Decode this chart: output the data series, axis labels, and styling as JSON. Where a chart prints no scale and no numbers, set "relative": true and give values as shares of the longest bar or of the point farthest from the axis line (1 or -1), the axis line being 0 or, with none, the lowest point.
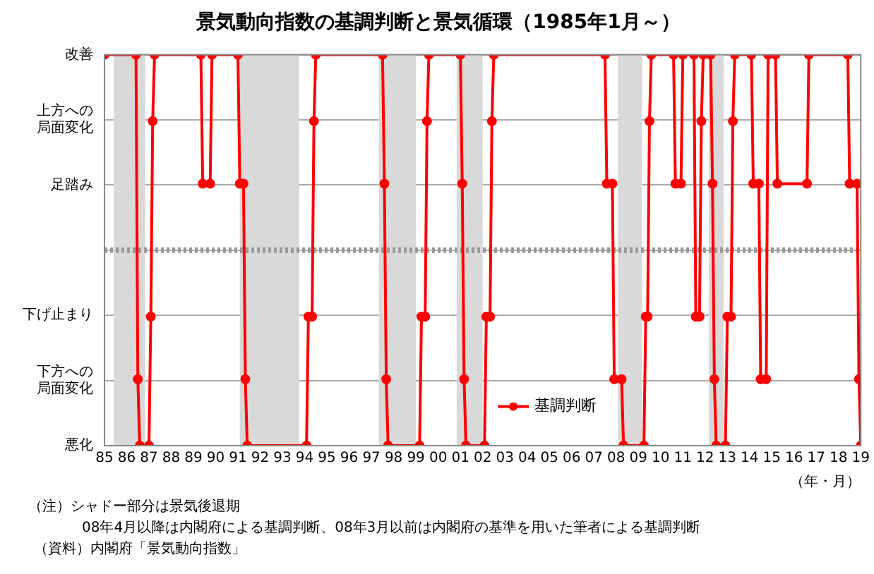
{
  "chart_data": {
    "type": "line",
    "title": "景気動向指数の基調判断と景気循環（1985年1月～）",
    "xlabel": "（年・月）",
    "x": [
      "1985-01",
      "1986-06",
      "1986-07",
      "1986-08",
      "1987-01",
      "1987-02",
      "1987-03",
      "1987-04",
      "1989-05",
      "1989-06",
      "1989-10",
      "1989-11",
      "1991-01",
      "1991-02",
      "1991-04",
      "1991-05",
      "1991-06",
      "1994-02",
      "1994-03",
      "1994-05",
      "1994-06",
      "1994-07",
      "1997-07",
      "1997-08",
      "1997-09",
      "1997-10",
      "1999-03",
      "1999-04",
      "1999-06",
      "1999-07",
      "1999-08",
      "2001-01",
      "2001-02",
      "2001-03",
      "2001-04",
      "2002-02",
      "2002-03",
      "2002-05",
      "2002-06",
      "2002-07",
      "2007-07",
      "2007-08",
      "2007-11",
      "2007-12",
      "2008-04",
      "2008-05",
      "2009-04",
      "2009-05",
      "2009-06",
      "2009-07",
      "2009-08",
      "2010-08",
      "2010-09",
      "2010-12",
      "2011-01",
      "2011-07",
      "2011-08",
      "2011-10",
      "2011-11",
      "2011-12",
      "2012-04",
      "2012-05",
      "2012-06",
      "2012-07",
      "2012-12",
      "2013-01",
      "2013-03",
      "2013-04",
      "2013-05",
      "2014-02",
      "2014-03",
      "2014-06",
      "2014-07",
      "2014-10",
      "2014-11",
      "2015-03",
      "2015-04",
      "2016-08",
      "2016-09",
      "2018-06",
      "2018-07",
      "2018-11",
      "2018-12",
      "2019-01"
    ],
    "series": [
      {
        "name": "基調判断",
        "color": "#ff0000",
        "values": [
          1,
          1,
          0.17,
          0,
          0,
          0.33,
          0.83,
          1,
          1,
          0.67,
          0.67,
          1,
          1,
          0.67,
          0.67,
          0.17,
          0,
          0,
          0.33,
          0.33,
          0.83,
          1,
          1,
          0.67,
          0.17,
          0,
          0,
          0.33,
          0.33,
          0.83,
          1,
          1,
          0.67,
          0.17,
          0,
          0,
          0.33,
          0.33,
          0.83,
          1,
          1,
          0.67,
          0.67,
          0.17,
          0.17,
          0,
          0,
          0.33,
          0.33,
          0.83,
          1,
          1,
          0.67,
          0.67,
          1,
          1,
          0.33,
          0.33,
          0.83,
          1,
          1,
          0.67,
          0.17,
          0,
          0,
          0.33,
          0.33,
          0.83,
          1,
          1,
          0.67,
          0.67,
          0.17,
          0.17,
          1,
          1,
          0.67,
          0.67,
          1,
          1,
          0.67,
          0.67,
          0.17,
          0
        ]
      }
    ],
    "relative": true,
    "xlim": [
      "1985-01",
      "2019-01"
    ],
    "xticks": [
      {
        "value": "1985-01",
        "label": "85"
      },
      {
        "value": "1986-01",
        "label": "86"
      },
      {
        "value": "1987-01",
        "label": "87"
      },
      {
        "value": "1988-01",
        "label": "88"
      },
      {
        "value": "1989-01",
        "label": "89"
      },
      {
        "value": "1990-01",
        "label": "90"
      },
      {
        "value": "1991-01",
        "label": "91"
      },
      {
        "value": "1992-01",
        "label": "92"
      },
      {
        "value": "1993-01",
        "label": "93"
      },
      {
        "value": "1994-01",
        "label": "94"
      },
      {
        "value": "1995-01",
        "label": "95"
      },
      {
        "value": "1996-01",
        "label": "96"
      },
      {
        "value": "1997-01",
        "label": "97"
      },
      {
        "value": "1998-01",
        "label": "98"
      },
      {
        "value": "1999-01",
        "label": "99"
      },
      {
        "value": "2000-01",
        "label": "00"
      },
      {
        "value": "2001-01",
        "label": "01"
      },
      {
        "value": "2002-01",
        "label": "02"
      },
      {
        "value": "2003-01",
        "label": "03"
      },
      {
        "value": "2004-01",
        "label": "04"
      },
      {
        "value": "2005-01",
        "label": "05"
      },
      {
        "value": "2006-01",
        "label": "06"
      },
      {
        "value": "2007-01",
        "label": "07"
      },
      {
        "value": "2008-01",
        "label": "08"
      },
      {
        "value": "2009-01",
        "label": "09"
      },
      {
        "value": "2010-01",
        "label": "10"
      },
      {
        "value": "2011-01",
        "label": "11"
      },
      {
        "value": "2012-01",
        "label": "12"
      },
      {
        "value": "2013-01",
        "label": "13"
      },
      {
        "value": "2014-01",
        "label": "14"
      },
      {
        "value": "2015-01",
        "label": "15"
      },
      {
        "value": "2016-01",
        "label": "16"
      },
      {
        "value": "2017-01",
        "label": "17"
      },
      {
        "value": "2018-01",
        "label": "18"
      },
      {
        "value": "2019-01",
        "label": "19"
      }
    ],
    "y_categories": [
      "改善",
      "上方への局面変化",
      "足踏み",
      null,
      "下げ止まり",
      "下方への局面変化",
      "悪化"
    ],
    "ref_lines": [
      {
        "axis": "y",
        "value": 0.5,
        "label": null,
        "color": "#999999",
        "line_style": "dotted"
      }
    ],
    "bands": [
      {
        "axis": "x",
        "from": "1985-06",
        "to": "1986-11",
        "label": null,
        "color": "#d9d9d9"
      },
      {
        "axis": "x",
        "from": "1991-02",
        "to": "1993-10",
        "label": null,
        "color": "#d9d9d9"
      },
      {
        "axis": "x",
        "from": "1997-05",
        "to": "1999-01",
        "label": null,
        "color": "#d9d9d9"
      },
      {
        "axis": "x",
        "from": "2000-11",
        "to": "2002-01",
        "label": null,
        "color": "#d9d9d9"
      },
      {
        "axis": "x",
        "from": "2008-02",
        "to": "2009-03",
        "label": null,
        "color": "#d9d9d9"
      },
      {
        "axis": "x",
        "from": "2012-03",
        "to": "2012-11",
        "label": null,
        "color": "#d9d9d9"
      }
    ],
    "grid": "y",
    "legend": "bottom",
    "marker": "circle",
    "line_style": "solid",
    "annotations": [
      "（注）シャドー部分は景気後退期",
      "08年4月以降は内閣府による基調判断、08年3月以前は内閣府の基準を用いた筆者による基調判断",
      "（資料）内閣府「景気動向指数」"
    ]
  }
}
